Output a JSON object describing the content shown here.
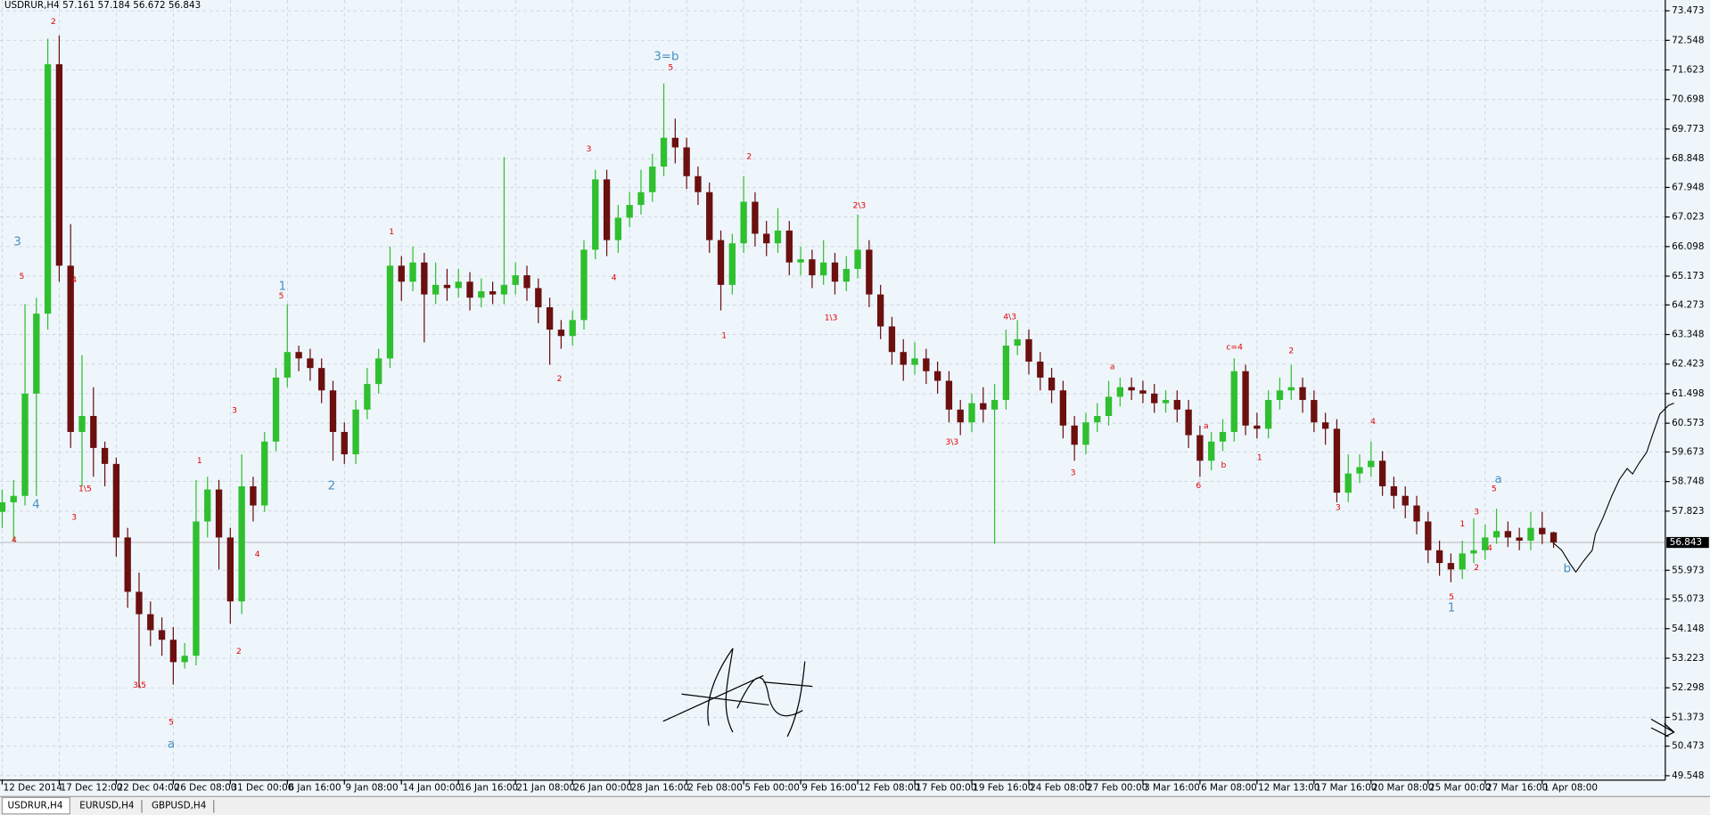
{
  "chart_data": {
    "type": "candlestick",
    "title": "USDRUR,H4 57.161 57.184 56.672 56.843",
    "up_color": "#2fbf2f",
    "down_color": "#6b0f0f",
    "grid": true,
    "ylim": [
      49.41,
      73.81
    ],
    "yticks": [
      73.473,
      72.548,
      71.623,
      70.698,
      69.773,
      68.848,
      67.948,
      67.023,
      66.098,
      65.173,
      64.273,
      63.348,
      62.423,
      61.498,
      60.573,
      59.673,
      58.748,
      57.823,
      55.973,
      55.073,
      54.148,
      53.223,
      52.298,
      51.373,
      50.473,
      49.548
    ],
    "current_price": 56.843,
    "categories": [
      "12 Dec 2014",
      null,
      null,
      null,
      null,
      "17 Dec 12:00",
      null,
      null,
      null,
      null,
      "22 Dec 04:00",
      null,
      null,
      null,
      null,
      "26 Dec 08:00",
      null,
      null,
      null,
      null,
      "31 Dec 00:00",
      null,
      null,
      null,
      null,
      "6 Jan 16:00",
      null,
      null,
      null,
      null,
      "9 Jan 08:00",
      null,
      null,
      null,
      null,
      "14 Jan 00:00",
      null,
      null,
      null,
      null,
      "16 Jan 16:00",
      null,
      null,
      null,
      null,
      "21 Jan 08:00",
      null,
      null,
      null,
      null,
      "26 Jan 00:00",
      null,
      null,
      null,
      null,
      "28 Jan 16:00",
      null,
      null,
      null,
      null,
      "2 Feb 08:00",
      null,
      null,
      null,
      null,
      "5 Feb 00:00",
      null,
      null,
      null,
      null,
      "9 Feb 16:00",
      null,
      null,
      null,
      null,
      "12 Feb 08:00",
      null,
      null,
      null,
      null,
      "17 Feb 00:00",
      null,
      null,
      null,
      null,
      "19 Feb 16:00",
      null,
      null,
      null,
      null,
      "24 Feb 08:00",
      null,
      null,
      null,
      null,
      "27 Feb 00:00",
      null,
      null,
      null,
      null,
      "3 Mar 16:00",
      null,
      null,
      null,
      null,
      "6 Mar 08:00",
      null,
      null,
      null,
      null,
      "12 Mar 13:00",
      null,
      null,
      null,
      null,
      "17 Mar 16:00",
      null,
      null,
      null,
      null,
      "20 Mar 08:00",
      null,
      null,
      null,
      null,
      "25 Mar 00:00",
      null,
      null,
      null,
      null,
      "27 Mar 16:00",
      null,
      null,
      null,
      null,
      "1 Apr 08:00",
      null
    ],
    "open": [
      57.8,
      58.1,
      58.3,
      61.5,
      64.0,
      71.8,
      65.5,
      60.3,
      60.8,
      59.8,
      59.3,
      57.0,
      55.3,
      54.6,
      54.1,
      53.8,
      53.1,
      53.3,
      57.5,
      58.5,
      57.0,
      55.0,
      58.6,
      58.0,
      60.0,
      62.0,
      62.8,
      62.6,
      62.3,
      61.6,
      60.3,
      59.6,
      61.0,
      61.8,
      62.6,
      65.5,
      65.0,
      65.6,
      64.6,
      64.9,
      64.8,
      65.0,
      64.5,
      64.7,
      64.6,
      64.9,
      65.2,
      64.8,
      64.2,
      63.5,
      63.3,
      63.8,
      66.0,
      68.2,
      66.3,
      67.0,
      67.4,
      67.8,
      68.6,
      69.5,
      69.2,
      68.3,
      67.8,
      66.3,
      64.9,
      66.2,
      67.5,
      66.5,
      66.2,
      66.6,
      65.6,
      65.7,
      65.2,
      65.6,
      65.0,
      65.4,
      66.0,
      64.6,
      63.6,
      62.8,
      62.4,
      62.6,
      62.2,
      61.9,
      61.0,
      60.6,
      61.2,
      61.0,
      61.3,
      63.0,
      63.2,
      62.5,
      62.0,
      61.6,
      60.5,
      59.9,
      60.6,
      60.8,
      61.4,
      61.7,
      61.6,
      61.5,
      61.2,
      61.3,
      61.0,
      60.2,
      59.4,
      60.0,
      60.3,
      62.2,
      60.5,
      60.4,
      61.3,
      61.6,
      61.7,
      61.3,
      60.6,
      60.4,
      58.4,
      59.0,
      59.2,
      59.4,
      58.6,
      58.3,
      58.0,
      57.5,
      56.6,
      56.2,
      56.0,
      56.5,
      56.6,
      57.0,
      57.2,
      57.0,
      56.9,
      57.3,
      57.161
    ],
    "high": [
      58.5,
      58.8,
      64.3,
      64.5,
      72.6,
      72.7,
      66.8,
      62.7,
      61.7,
      60.0,
      59.5,
      57.3,
      55.9,
      55.0,
      54.5,
      54.2,
      53.7,
      58.8,
      58.9,
      58.8,
      57.3,
      59.6,
      58.9,
      60.3,
      62.3,
      64.3,
      63.0,
      62.9,
      62.6,
      61.9,
      60.6,
      61.3,
      62.3,
      62.9,
      66.1,
      65.8,
      66.1,
      65.9,
      65.6,
      65.4,
      65.4,
      65.3,
      65.1,
      65.0,
      68.9,
      65.6,
      65.5,
      65.1,
      64.5,
      63.8,
      64.1,
      66.3,
      68.5,
      68.5,
      67.4,
      67.8,
      68.5,
      69.0,
      71.2,
      70.1,
      69.5,
      68.6,
      68.1,
      66.6,
      66.5,
      68.3,
      67.8,
      66.9,
      67.3,
      66.9,
      66.1,
      66.0,
      66.3,
      65.9,
      65.8,
      67.1,
      66.3,
      64.9,
      63.9,
      63.2,
      63.1,
      62.9,
      62.5,
      62.2,
      61.3,
      61.5,
      61.7,
      61.8,
      63.5,
      63.8,
      63.5,
      62.8,
      62.3,
      61.9,
      60.8,
      60.9,
      61.2,
      61.9,
      62.0,
      62.0,
      61.9,
      61.8,
      61.6,
      61.6,
      61.3,
      60.5,
      60.3,
      60.7,
      62.6,
      62.4,
      60.9,
      61.6,
      62.0,
      62.4,
      62.0,
      61.6,
      60.9,
      60.7,
      59.6,
      59.6,
      60.0,
      59.7,
      58.9,
      58.6,
      58.3,
      57.8,
      56.9,
      56.5,
      56.9,
      57.6,
      57.4,
      57.9,
      57.5,
      57.3,
      57.8,
      57.8,
      57.184
    ],
    "low": [
      57.3,
      56.9,
      58.0,
      58.3,
      63.5,
      65.0,
      59.8,
      58.6,
      58.9,
      58.6,
      56.4,
      54.8,
      52.3,
      53.6,
      53.3,
      52.4,
      52.9,
      53.0,
      57.0,
      56.0,
      54.3,
      54.6,
      57.5,
      57.8,
      59.7,
      61.7,
      62.2,
      61.9,
      61.2,
      59.4,
      59.3,
      59.3,
      60.7,
      61.5,
      62.3,
      64.4,
      64.7,
      63.1,
      64.3,
      64.4,
      64.5,
      64.1,
      64.2,
      64.3,
      64.3,
      64.6,
      64.4,
      63.7,
      62.4,
      62.9,
      63.0,
      63.5,
      65.7,
      65.8,
      65.9,
      66.7,
      67.1,
      67.5,
      68.3,
      68.7,
      67.9,
      67.4,
      65.9,
      64.1,
      64.6,
      65.9,
      66.1,
      65.8,
      65.9,
      65.2,
      65.2,
      64.8,
      64.9,
      64.6,
      64.7,
      65.1,
      64.2,
      63.2,
      62.4,
      61.9,
      62.1,
      61.8,
      61.5,
      60.6,
      60.2,
      60.3,
      60.6,
      56.8,
      61.0,
      62.7,
      62.1,
      61.6,
      61.2,
      60.1,
      59.4,
      59.6,
      60.3,
      60.5,
      61.1,
      61.3,
      61.2,
      60.9,
      60.9,
      60.6,
      59.8,
      58.9,
      59.1,
      59.7,
      60.0,
      60.2,
      60.1,
      60.1,
      61.0,
      61.3,
      60.9,
      60.3,
      59.9,
      58.1,
      58.1,
      58.7,
      58.9,
      58.3,
      57.9,
      57.6,
      57.1,
      56.2,
      55.8,
      55.6,
      55.7,
      56.2,
      56.3,
      56.8,
      56.7,
      56.6,
      56.6,
      56.8,
      56.672
    ],
    "close": [
      58.1,
      58.3,
      61.5,
      64.0,
      71.8,
      65.5,
      60.3,
      60.8,
      59.8,
      59.3,
      57.0,
      55.3,
      54.6,
      54.1,
      53.8,
      53.1,
      53.3,
      57.5,
      58.5,
      57.0,
      55.0,
      58.6,
      58.0,
      60.0,
      62.0,
      62.8,
      62.6,
      62.3,
      61.6,
      60.3,
      59.6,
      61.0,
      61.8,
      62.6,
      65.5,
      65.0,
      65.6,
      64.6,
      64.9,
      64.8,
      65.0,
      64.5,
      64.7,
      64.6,
      64.9,
      65.2,
      64.8,
      64.2,
      63.5,
      63.3,
      63.8,
      66.0,
      68.2,
      66.3,
      67.0,
      67.4,
      67.8,
      68.6,
      69.5,
      69.2,
      68.3,
      67.8,
      66.3,
      64.9,
      66.2,
      67.5,
      66.5,
      66.2,
      66.6,
      65.6,
      65.7,
      65.2,
      65.6,
      65.0,
      65.4,
      66.0,
      64.6,
      63.6,
      62.8,
      62.4,
      62.6,
      62.2,
      61.9,
      61.0,
      60.6,
      61.2,
      61.0,
      61.3,
      63.0,
      63.2,
      62.5,
      62.0,
      61.6,
      60.5,
      59.9,
      60.6,
      60.8,
      61.4,
      61.7,
      61.6,
      61.5,
      61.2,
      61.3,
      61.0,
      60.2,
      59.4,
      60.0,
      60.3,
      62.2,
      60.5,
      60.4,
      61.3,
      61.6,
      61.7,
      61.3,
      60.6,
      60.4,
      58.4,
      59.0,
      59.2,
      59.4,
      58.6,
      58.3,
      58.0,
      57.5,
      56.6,
      56.2,
      56.0,
      56.5,
      56.6,
      57.0,
      57.2,
      57.0,
      56.9,
      57.3,
      57.1,
      56.843
    ]
  },
  "annotations": [
    {
      "text": "2",
      "color": "#e00000"
    },
    {
      "text": "5",
      "color": "#e00000"
    },
    {
      "text": "4",
      "color": "#e00000"
    },
    {
      "text": "4",
      "color": "#e00000"
    },
    {
      "text": "1\\5",
      "color": "#e00000"
    },
    {
      "text": "3",
      "color": "#e00000"
    },
    {
      "text": "3\\5",
      "color": "#e00000"
    },
    {
      "text": "5",
      "color": "#e00000"
    },
    {
      "text": "1",
      "color": "#e00000"
    },
    {
      "text": "3",
      "color": "#e00000"
    },
    {
      "text": "2",
      "color": "#e00000"
    },
    {
      "text": "4",
      "color": "#e00000"
    },
    {
      "text": "5",
      "color": "#e00000"
    },
    {
      "text": "1",
      "color": "#e00000"
    },
    {
      "text": "2",
      "color": "#e00000"
    },
    {
      "text": "3",
      "color": "#e00000"
    },
    {
      "text": "4",
      "color": "#e00000"
    },
    {
      "text": "5",
      "color": "#e00000"
    },
    {
      "text": "1",
      "color": "#e00000"
    },
    {
      "text": "2",
      "color": "#e00000"
    },
    {
      "text": "2\\3",
      "color": "#e00000"
    },
    {
      "text": "1\\3",
      "color": "#e00000"
    },
    {
      "text": "3\\3",
      "color": "#e00000"
    },
    {
      "text": "4\\3",
      "color": "#e00000"
    },
    {
      "text": "3",
      "color": "#e00000"
    },
    {
      "text": "a",
      "color": "#e00000"
    },
    {
      "text": "c=4",
      "color": "#e00000"
    },
    {
      "text": "a",
      "color": "#e00000"
    },
    {
      "text": "b",
      "color": "#e00000"
    },
    {
      "text": "6",
      "color": "#e00000"
    },
    {
      "text": "1",
      "color": "#e00000"
    },
    {
      "text": "2",
      "color": "#e00000"
    },
    {
      "text": "4",
      "color": "#e00000"
    },
    {
      "text": "3",
      "color": "#e00000"
    },
    {
      "text": "1",
      "color": "#e00000"
    },
    {
      "text": "3",
      "color": "#e00000"
    },
    {
      "text": "5",
      "color": "#e00000"
    },
    {
      "text": "4",
      "color": "#e00000"
    },
    {
      "text": "2",
      "color": "#e00000"
    },
    {
      "text": "5",
      "color": "#e00000"
    },
    {
      "text": "3",
      "color": "#4a8fc0"
    },
    {
      "text": "4",
      "color": "#4a8fc0"
    },
    {
      "text": "a",
      "color": "#4a8fc0"
    },
    {
      "text": "1",
      "color": "#4a8fc0"
    },
    {
      "text": "2",
      "color": "#4a8fc0"
    },
    {
      "text": "3=b",
      "color": "#4a8fc0"
    },
    {
      "text": "1",
      "color": "#4a8fc0"
    },
    {
      "text": "a",
      "color": "#4a8fc0"
    },
    {
      "text": "b",
      "color": "#4a8fc0"
    }
  ],
  "tabs": [
    "USDRUR,H4",
    "EURUSD,H4",
    "GBPUSD,H4"
  ]
}
